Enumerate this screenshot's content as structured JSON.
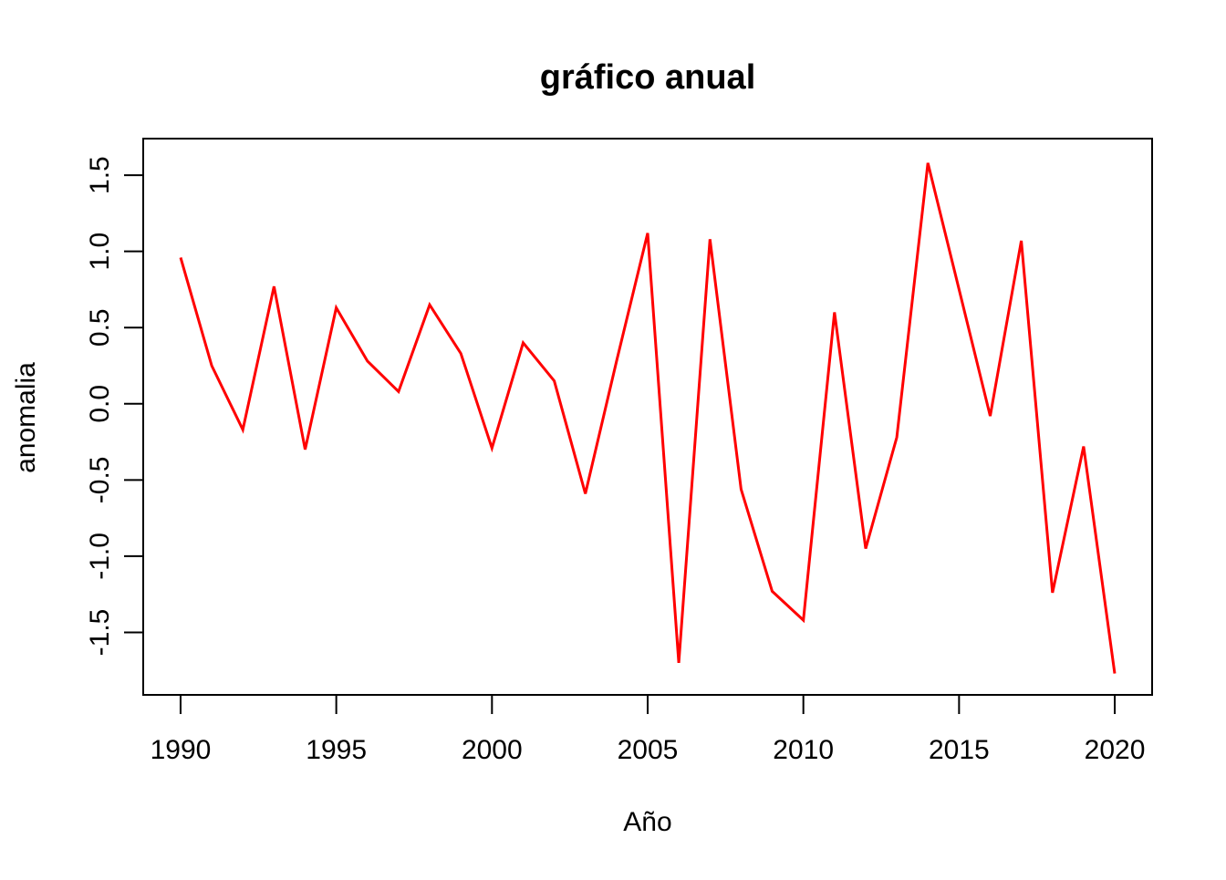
{
  "chart_data": {
    "type": "line",
    "title": "gráfico anual",
    "xlabel": "Año",
    "ylabel": "anomalia",
    "x": [
      1990,
      1991,
      1992,
      1993,
      1994,
      1995,
      1996,
      1997,
      1998,
      1999,
      2000,
      2001,
      2002,
      2003,
      2004,
      2005,
      2006,
      2007,
      2008,
      2009,
      2010,
      2011,
      2012,
      2013,
      2014,
      2015,
      2016,
      2017,
      2018,
      2019,
      2020
    ],
    "values": [
      0.96,
      0.25,
      -0.17,
      0.77,
      -0.3,
      0.63,
      0.28,
      0.08,
      0.65,
      0.33,
      -0.29,
      0.4,
      0.15,
      -0.59,
      0.28,
      1.12,
      -1.7,
      1.08,
      -0.56,
      -1.23,
      -1.42,
      0.6,
      -0.95,
      -0.22,
      1.58,
      0.75,
      -0.08,
      1.07,
      -1.24,
      -0.28,
      -1.77
    ],
    "x_ticks": [
      1990,
      1995,
      2000,
      2005,
      2010,
      2015,
      2020
    ],
    "x_tick_labels": [
      "1990",
      "1995",
      "2000",
      "2005",
      "2010",
      "2015",
      "2020"
    ],
    "y_ticks": [
      -1.5,
      -1.0,
      -0.5,
      0.0,
      0.5,
      1.0,
      1.5
    ],
    "y_tick_labels": [
      "-1.5",
      "-1.0",
      "-0.5",
      "0.0",
      "0.5",
      "1.0",
      "1.5"
    ],
    "xlim": [
      1988.8,
      2021.2
    ],
    "ylim": [
      -1.91,
      1.74
    ],
    "grid": false,
    "legend_position": null,
    "line_color": "#FF0000",
    "axis_color": "#000000",
    "background_color": "#FFFFFF"
  }
}
